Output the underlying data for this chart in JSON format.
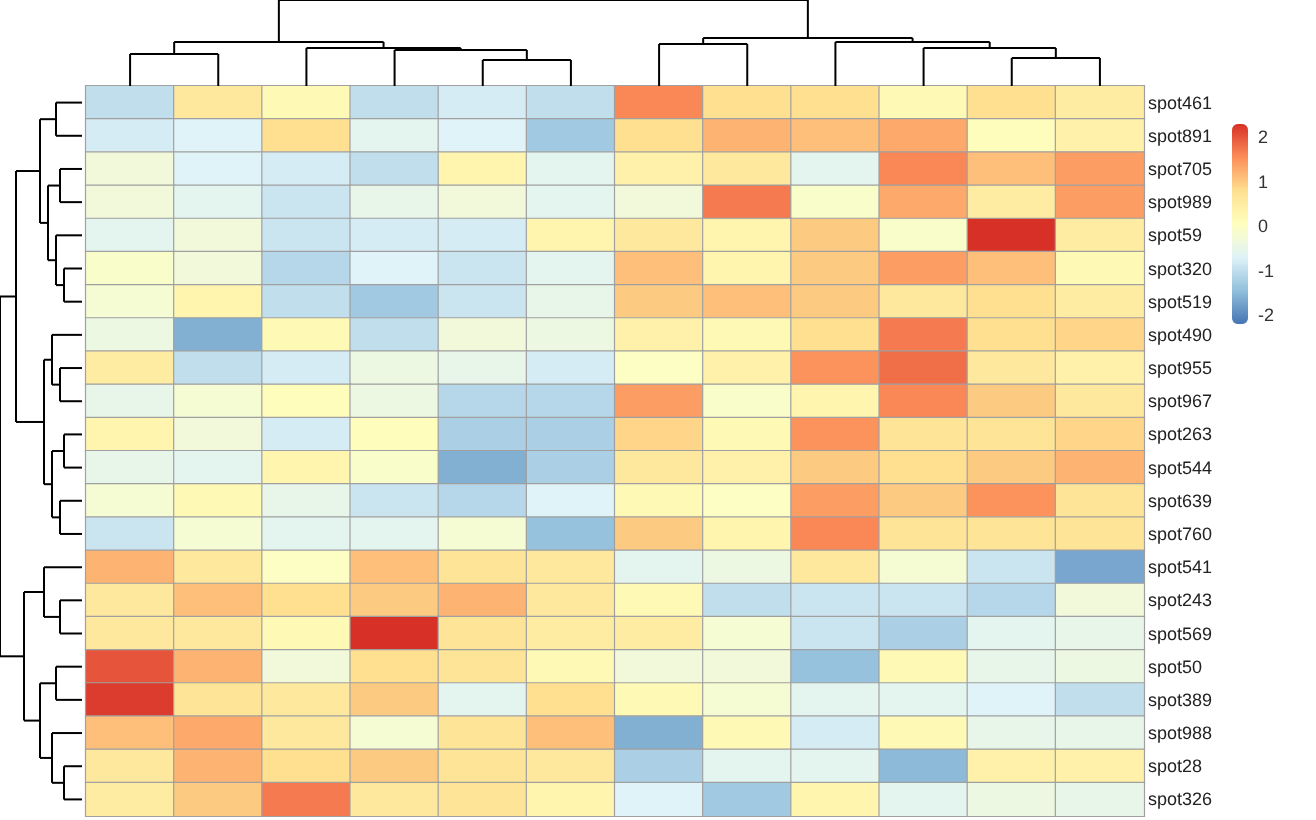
{
  "chart_data": {
    "type": "heatmap",
    "categories": [
      null,
      null,
      null,
      null,
      null,
      null,
      null,
      null,
      null,
      null,
      null,
      null
    ],
    "y_categories": [
      "spot461",
      "spot891",
      "spot705",
      "spot989",
      "spot59",
      "spot320",
      "spot519",
      "spot490",
      "spot955",
      "spot967",
      "spot263",
      "spot544",
      "spot639",
      "spot760",
      "spot541",
      "spot243",
      "spot569",
      "spot50",
      "spot389",
      "spot988",
      "spot28",
      "spot326"
    ],
    "cells": [
      [
        -1.0,
        0.6,
        0.2,
        -1.0,
        -0.8,
        -1.0,
        1.6,
        0.8,
        0.8,
        0.2,
        0.8,
        0.5
      ],
      [
        -0.8,
        -0.7,
        0.8,
        -0.6,
        -0.7,
        -1.3,
        0.8,
        1.2,
        1.1,
        1.3,
        0.1,
        0.4
      ],
      [
        -0.3,
        -0.7,
        -0.8,
        -1.0,
        0.3,
        -0.6,
        0.4,
        0.6,
        -0.6,
        1.6,
        1.1,
        1.4
      ],
      [
        -0.3,
        -0.6,
        -0.9,
        -0.5,
        -0.3,
        -0.6,
        -0.3,
        1.7,
        -0.1,
        1.3,
        0.5,
        1.4
      ],
      [
        -0.6,
        -0.3,
        -0.9,
        -0.8,
        -0.8,
        0.3,
        0.6,
        0.3,
        1.0,
        -0.1,
        2.3,
        0.5
      ],
      [
        -0.1,
        -0.3,
        -1.1,
        -0.7,
        -0.9,
        -0.6,
        1.1,
        0.3,
        1.0,
        1.4,
        1.1,
        0.2
      ],
      [
        -0.2,
        0.3,
        -1.0,
        -1.3,
        -0.9,
        -0.5,
        1.0,
        1.1,
        1.0,
        0.6,
        0.8,
        0.5
      ],
      [
        -0.4,
        -1.6,
        0.2,
        -1.0,
        -0.3,
        -0.4,
        0.4,
        0.2,
        0.8,
        1.7,
        0.8,
        0.9
      ],
      [
        0.5,
        -1.0,
        -0.8,
        -0.4,
        -0.5,
        -0.8,
        0.0,
        0.4,
        1.5,
        1.8,
        0.6,
        0.4
      ],
      [
        -0.5,
        -0.2,
        0.1,
        -0.4,
        -1.1,
        -1.1,
        1.4,
        -0.1,
        0.3,
        1.6,
        1.0,
        0.6
      ],
      [
        0.3,
        -0.3,
        -0.8,
        0.1,
        -1.2,
        -1.2,
        0.9,
        0.2,
        1.5,
        0.7,
        0.7,
        0.9
      ],
      [
        -0.5,
        -0.6,
        0.3,
        -0.1,
        -1.6,
        -1.2,
        0.6,
        0.4,
        1.0,
        0.8,
        1.0,
        1.2
      ],
      [
        -0.2,
        0.2,
        -0.5,
        -0.9,
        -1.1,
        -0.7,
        0.2,
        0.0,
        1.4,
        1.0,
        1.5,
        0.7
      ],
      [
        -0.9,
        -0.2,
        -0.6,
        -0.6,
        -0.2,
        -1.4,
        1.0,
        0.3,
        1.6,
        0.7,
        0.7,
        0.7
      ],
      [
        1.2,
        0.6,
        0.0,
        1.1,
        0.7,
        0.6,
        -0.6,
        -0.4,
        0.6,
        -0.2,
        -0.9,
        -1.7
      ],
      [
        0.6,
        1.1,
        0.8,
        1.0,
        1.2,
        0.6,
        0.2,
        -1.0,
        -0.9,
        -0.9,
        -1.1,
        -0.3
      ],
      [
        0.6,
        0.6,
        0.2,
        2.3,
        0.7,
        0.5,
        0.5,
        -0.2,
        -0.9,
        -1.2,
        -0.6,
        -0.5
      ],
      [
        2.0,
        1.2,
        -0.3,
        0.8,
        0.7,
        0.2,
        -0.3,
        -0.3,
        -1.4,
        0.2,
        -0.5,
        -0.4
      ],
      [
        2.2,
        0.7,
        0.6,
        1.0,
        -0.6,
        0.8,
        0.2,
        -0.2,
        -0.6,
        -0.6,
        -0.7,
        -1.0
      ],
      [
        1.1,
        1.3,
        0.6,
        -0.2,
        0.7,
        1.1,
        -1.6,
        0.2,
        -0.8,
        0.2,
        -0.5,
        -0.5
      ],
      [
        0.6,
        1.2,
        0.8,
        1.0,
        0.7,
        0.6,
        -1.2,
        -0.6,
        -0.6,
        -1.5,
        0.4,
        0.4
      ],
      [
        0.5,
        1.0,
        1.7,
        0.6,
        0.7,
        0.3,
        -0.7,
        -1.3,
        0.3,
        -0.6,
        -0.4,
        -0.5
      ]
    ],
    "clim": [
      -2.2,
      2.3
    ],
    "cticks": [
      -2,
      -1,
      0,
      1,
      2
    ]
  }
}
